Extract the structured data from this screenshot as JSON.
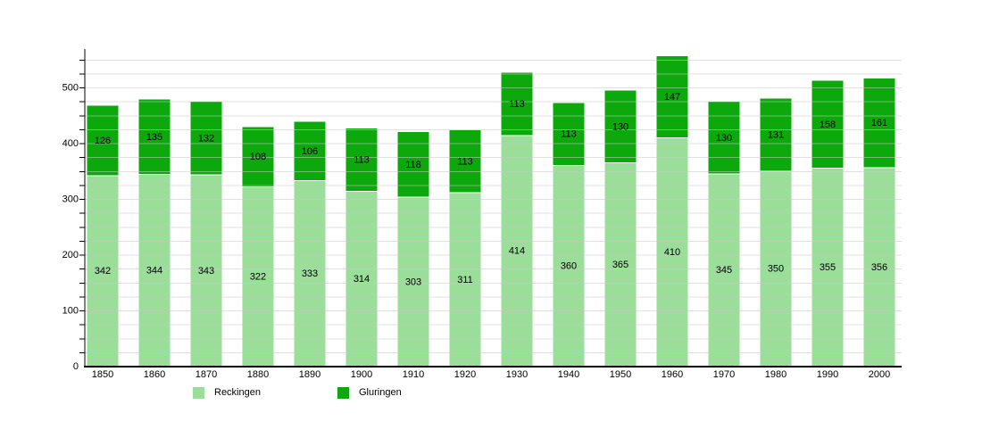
{
  "chart_data": {
    "type": "bar",
    "stacked": true,
    "title": "",
    "xlabel": "",
    "ylabel": "",
    "categories": [
      "1850",
      "1860",
      "1870",
      "1880",
      "1890",
      "1900",
      "1910",
      "1920",
      "1930",
      "1940",
      "1950",
      "1960",
      "1970",
      "1980",
      "1990",
      "2000"
    ],
    "series": [
      {
        "name": "Reckingen",
        "color": "#9ade9a",
        "values": [
          342,
          344,
          343,
          322,
          333,
          314,
          303,
          311,
          414,
          360,
          365,
          410,
          345,
          350,
          355,
          356
        ]
      },
      {
        "name": "Gluringen",
        "color": "#0ca80c",
        "values": [
          126,
          135,
          132,
          108,
          106,
          113,
          118,
          113,
          113,
          113,
          130,
          147,
          130,
          131,
          158,
          161
        ]
      }
    ],
    "ylim": [
      0,
      560
    ],
    "yticks": [
      0,
      100,
      200,
      300,
      400,
      500
    ],
    "grid": true,
    "grid_interval": 25,
    "bar_value_labels": true,
    "legend_position": "bottom"
  },
  "styles": {
    "grid_color": "#c8c8c8",
    "axis_color": "#000000",
    "label_color": "#000000",
    "background": "#ffffff"
  }
}
